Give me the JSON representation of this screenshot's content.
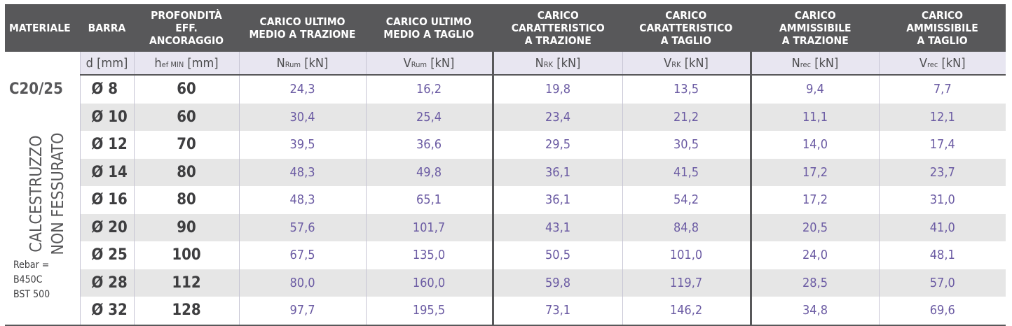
{
  "headers": [
    "MATERIALE",
    "BARRA",
    "PROFONDITÀ\nEFF. ANCORAGGIO",
    "CARICO ULTIMO\nMEDIO A TRAZIONE",
    "CARICO ULTIMO\nMEDIO A TAGLIO",
    "CARICO\nCARATTERISTICO\nA TRAZIONE",
    "CARICO\nCARATTERISTICO\nA TAGLIO",
    "CARICO\nAMMISSIBILE\nA TRAZIONE",
    "CARICO\nAMMISSIBILE\nA TAGLIO"
  ],
  "units": [
    {
      "main": "d",
      "sub": "",
      "unit": " [mm]"
    },
    {
      "main": "h",
      "sub": "ef MIN",
      "unit": " [mm]"
    },
    {
      "main": "N",
      "sub": "Rum",
      "unit": " [kN]"
    },
    {
      "main": "V",
      "sub": "Rum",
      "unit": " [kN]"
    },
    {
      "main": "N",
      "sub": "RK",
      "unit": " [kN]"
    },
    {
      "main": "V",
      "sub": "RK",
      "unit": " [kN]"
    },
    {
      "main": "N",
      "sub": "rec",
      "unit": " [kN]"
    },
    {
      "main": "V",
      "sub": "rec",
      "unit": " [kN]"
    }
  ],
  "material": {
    "grade": "C20/25",
    "line1": "CALCESTRUZZO",
    "line2": "NON FESSURATO",
    "rebar1": "Rebar =",
    "rebar2": "B450C",
    "rebar3": "BST 500"
  },
  "rows": [
    {
      "bar": "Ø 8",
      "depth": "60",
      "vals": [
        "24,3",
        "16,2",
        "19,8",
        "13,5",
        "9,4",
        "7,7"
      ]
    },
    {
      "bar": "Ø 10",
      "depth": "60",
      "vals": [
        "30,4",
        "25,4",
        "23,4",
        "21,2",
        "11,1",
        "12,1"
      ]
    },
    {
      "bar": "Ø 12",
      "depth": "70",
      "vals": [
        "39,5",
        "36,6",
        "29,5",
        "30,5",
        "14,0",
        "17,4"
      ]
    },
    {
      "bar": "Ø 14",
      "depth": "80",
      "vals": [
        "48,3",
        "49,8",
        "36,1",
        "41,5",
        "17,2",
        "23,7"
      ]
    },
    {
      "bar": "Ø 16",
      "depth": "80",
      "vals": [
        "48,3",
        "65,1",
        "36,1",
        "54,2",
        "17,2",
        "31,0"
      ]
    },
    {
      "bar": "Ø 20",
      "depth": "90",
      "vals": [
        "57,6",
        "101,7",
        "43,1",
        "84,8",
        "20,5",
        "41,0"
      ]
    },
    {
      "bar": "Ø 25",
      "depth": "100",
      "vals": [
        "67,5",
        "135,0",
        "50,5",
        "101,0",
        "24,0",
        "48,1"
      ]
    },
    {
      "bar": "Ø 28",
      "depth": "112",
      "vals": [
        "80,0",
        "160,0",
        "59,8",
        "119,7",
        "28,5",
        "57,0"
      ]
    },
    {
      "bar": "Ø 32",
      "depth": "128",
      "vals": [
        "97,7",
        "195,5",
        "73,1",
        "146,2",
        "34,8",
        "69,6"
      ]
    }
  ]
}
